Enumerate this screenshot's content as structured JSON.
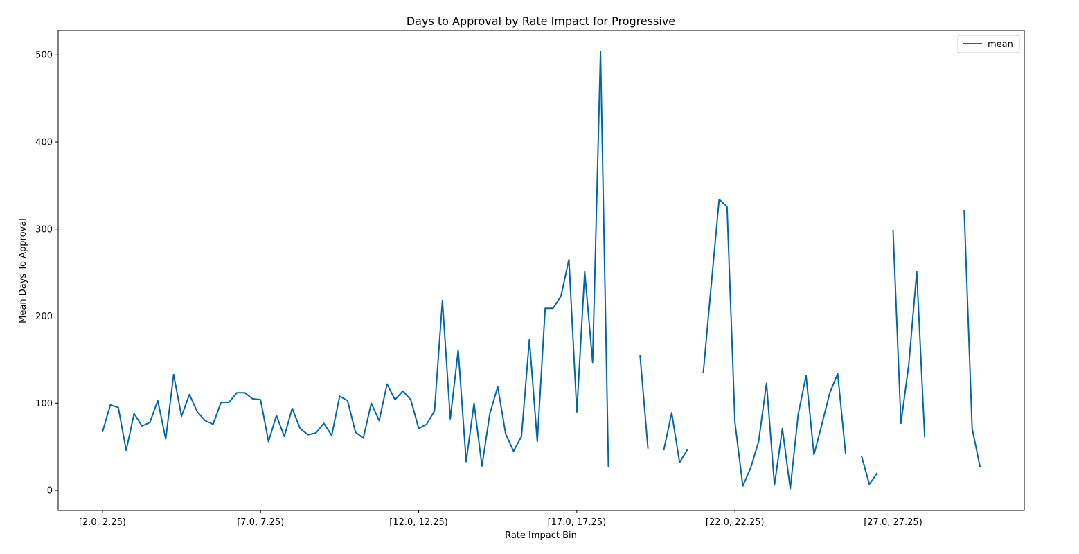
{
  "chart_data": {
    "type": "line",
    "title": "Days to Approval by Rate Impact for Progressive",
    "xlabel": "Rate Impact Bin",
    "ylabel": "Mean Days To Approval",
    "ylim": [
      -23,
      528
    ],
    "yticks": [
      0,
      100,
      200,
      300,
      400,
      500
    ],
    "xlim": [
      -5.6,
      116.6
    ],
    "xticks": [
      {
        "index": 0,
        "label": "[2.0, 2.25)"
      },
      {
        "index": 20,
        "label": "[7.0, 7.25)"
      },
      {
        "index": 40,
        "label": "[12.0, 12.25)"
      },
      {
        "index": 60,
        "label": "[17.0, 17.25)"
      },
      {
        "index": 80,
        "label": "[22.0, 22.25)"
      },
      {
        "index": 100,
        "label": "[27.0, 27.25)"
      }
    ],
    "grid": false,
    "legend_position": "upper right",
    "series": [
      {
        "name": "mean",
        "color": "#0066a6",
        "values": [
          67,
          98,
          95,
          46,
          88,
          74,
          78,
          103,
          59,
          133,
          85,
          110,
          90,
          80,
          76,
          101,
          101,
          112,
          112,
          105,
          104,
          56,
          86,
          62,
          94,
          71,
          64,
          66,
          77,
          63,
          108,
          103,
          67,
          60,
          100,
          80,
          122,
          104,
          114,
          104,
          71,
          76,
          91,
          218,
          82,
          161,
          33,
          100,
          28,
          88,
          119,
          65,
          45,
          62,
          173,
          56,
          209,
          209,
          223,
          265,
          90,
          251,
          147,
          504,
          27,
          null,
          null,
          null,
          155,
          48,
          null,
          46,
          89,
          32,
          47,
          null,
          135,
          235,
          334,
          326,
          78,
          5,
          26,
          56,
          123,
          6,
          71,
          2,
          87,
          132,
          41,
          76,
          112,
          134,
          42,
          null,
          40,
          7,
          20,
          null,
          299,
          77,
          145,
          251,
          61,
          null,
          null,
          null,
          null,
          322,
          71,
          27
        ]
      }
    ]
  }
}
